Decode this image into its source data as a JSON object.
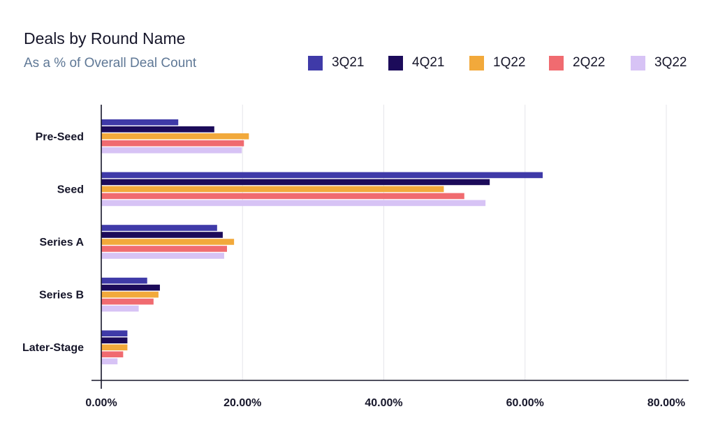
{
  "chart_data": {
    "type": "bar",
    "orientation": "horizontal",
    "title": "Deals by Round Name",
    "subtitle": "As a % of Overall Deal Count",
    "categories": [
      "Pre-Seed",
      "Seed",
      "Series A",
      "Series B",
      "Later-Stage"
    ],
    "series": [
      {
        "name": "3Q21",
        "color": "#3f3aa8",
        "values": [
          10.9,
          62.5,
          16.4,
          6.5,
          3.7
        ]
      },
      {
        "name": "4Q21",
        "color": "#1c0b5a",
        "values": [
          16.0,
          55.0,
          17.2,
          8.3,
          3.7
        ]
      },
      {
        "name": "1Q22",
        "color": "#f2a93b",
        "values": [
          20.9,
          48.5,
          18.8,
          8.1,
          3.7
        ]
      },
      {
        "name": "2Q22",
        "color": "#f06b70",
        "values": [
          20.2,
          51.4,
          17.8,
          7.4,
          3.1
        ]
      },
      {
        "name": "3Q22",
        "color": "#d7c3f5",
        "values": [
          19.9,
          54.4,
          17.4,
          5.3,
          2.3
        ]
      }
    ],
    "xlim": [
      0,
      80
    ],
    "x_ticks": [
      "0.00%",
      "20.00%",
      "40.00%",
      "60.00%",
      "80.00%"
    ],
    "legend_position": "top-right",
    "grid": true
  }
}
